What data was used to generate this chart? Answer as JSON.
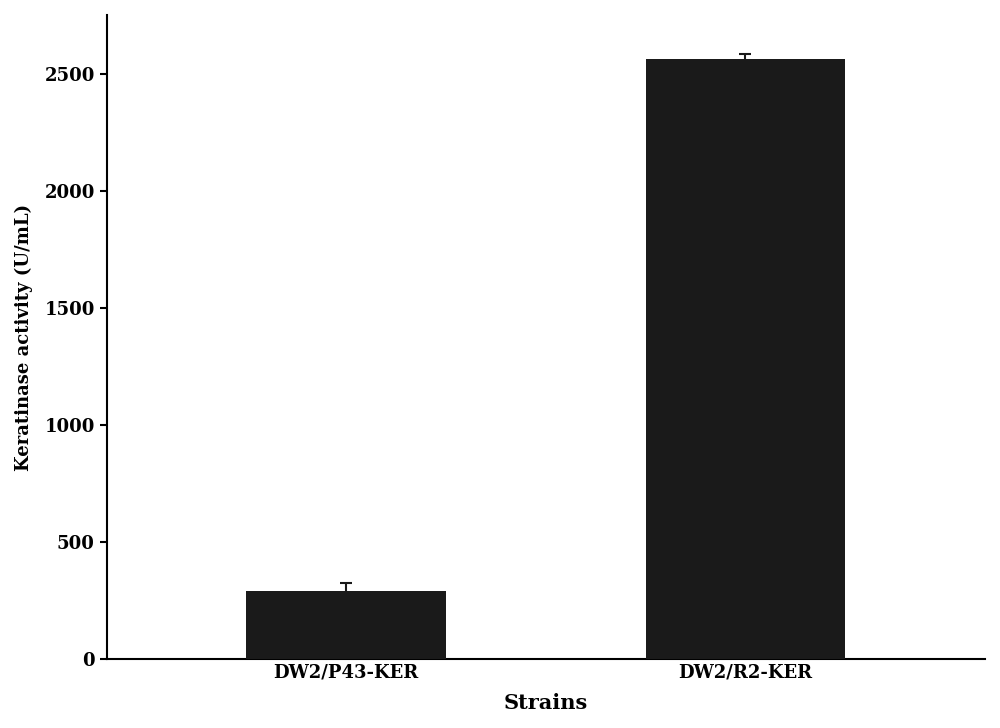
{
  "categories": [
    "DW2/P43-KER",
    "DW2/R2-KER"
  ],
  "values": [
    290,
    2560
  ],
  "errors": [
    35,
    25
  ],
  "bar_color": "#1a1a1a",
  "bar_width": 0.5,
  "xlabel": "Strains",
  "ylabel": "Keratinase activity (U/mL)",
  "ylim": [
    0,
    2750
  ],
  "yticks": [
    0,
    500,
    1000,
    1500,
    2000,
    2500
  ],
  "background_color": "#ffffff",
  "tick_fontsize": 13,
  "xlabel_fontsize": 15,
  "ylabel_fontsize": 13,
  "error_capsize": 4,
  "error_color": "#1a1a1a",
  "error_linewidth": 1.5,
  "x_positions": [
    1,
    2
  ],
  "xlim": [
    0.4,
    2.6
  ]
}
